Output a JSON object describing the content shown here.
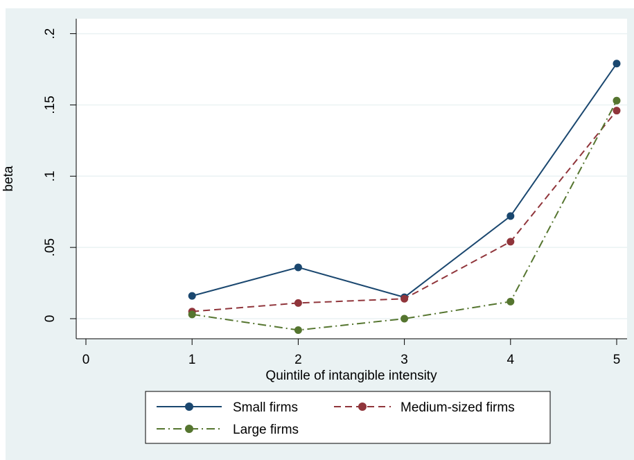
{
  "chart_data": {
    "type": "line",
    "title": "",
    "xlabel": "Quintile of intangible intensity",
    "ylabel": "beta",
    "xlim": [
      0,
      5
    ],
    "ylim": [
      -0.015,
      0.2
    ],
    "x_ticks": [
      "0",
      "1",
      "2",
      "3",
      "4",
      "5"
    ],
    "y_ticks": [
      "0",
      ".05",
      ".1",
      ".15",
      ".2"
    ],
    "grid": true,
    "legend_position": "bottom",
    "x": [
      1,
      2,
      3,
      4,
      5
    ],
    "series": [
      {
        "name": "Small firms",
        "color": "#1a476f",
        "dash": "solid",
        "values": [
          0.016,
          0.036,
          0.015,
          0.072,
          0.179
        ]
      },
      {
        "name": "Medium-sized firms",
        "color": "#90353b",
        "dash": "dashed",
        "values": [
          0.005,
          0.011,
          0.014,
          0.054,
          0.146
        ]
      },
      {
        "name": "Large firms",
        "color": "#55752f",
        "dash": "dash-dot",
        "values": [
          0.003,
          -0.008,
          0.0,
          0.012,
          0.153
        ]
      }
    ]
  },
  "colors": {
    "outer_background": "#eaf2f3",
    "plot_background": "#ffffff",
    "gridline": "#eaf2f3"
  }
}
